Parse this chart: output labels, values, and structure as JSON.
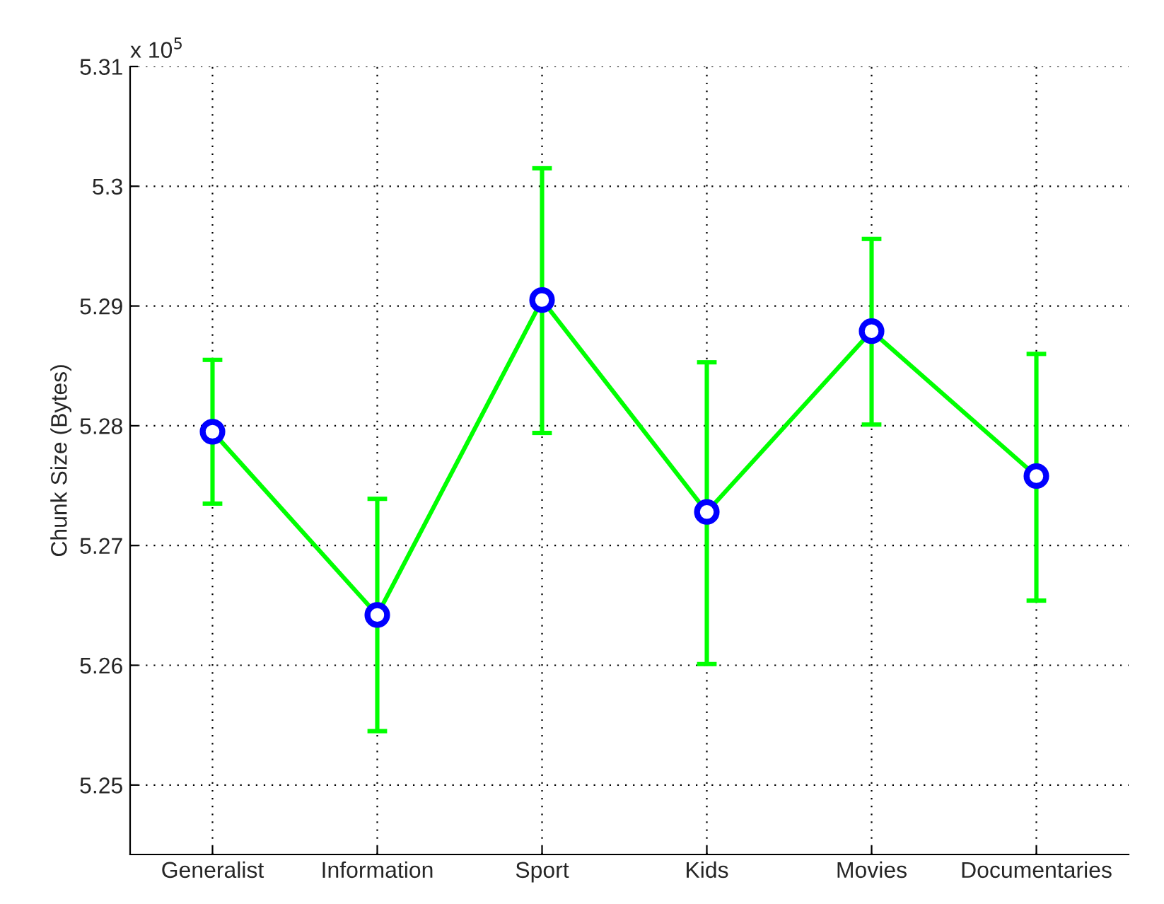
{
  "chart_data": {
    "type": "line",
    "ylabel": "Chunk Size (Bytes)",
    "annotations": [
      "x 10$^{5}$"
    ],
    "categories": [
      "Generalist",
      "Information",
      "Sport",
      "Kids",
      "Movies",
      "Documentaries"
    ],
    "series": [
      {
        "color": "#00ff00",
        "colors": [
          "#0000ff",
          "#0000ff",
          "#0000ff",
          "#0000ff",
          "#0000ff",
          "#0000ff"
        ],
        "values": [
          5.2795,
          5.2642,
          5.2905,
          5.2728,
          5.2879,
          5.2758
        ],
        "errors": [
          [
            5.2735,
            5.2855
          ],
          [
            5.2545,
            5.2739
          ],
          [
            5.2794,
            5.3015
          ],
          [
            5.2601,
            5.2853
          ],
          [
            5.2801,
            5.2956
          ],
          [
            5.2654,
            5.286
          ]
        ]
      }
    ],
    "ylim": [
      5.2442,
      5.31
    ],
    "yticks": [
      5.25,
      5.26,
      5.27,
      5.28,
      5.29,
      5.3,
      5.31
    ],
    "grid": true,
    "marker": "circle",
    "line_style": "solid"
  }
}
